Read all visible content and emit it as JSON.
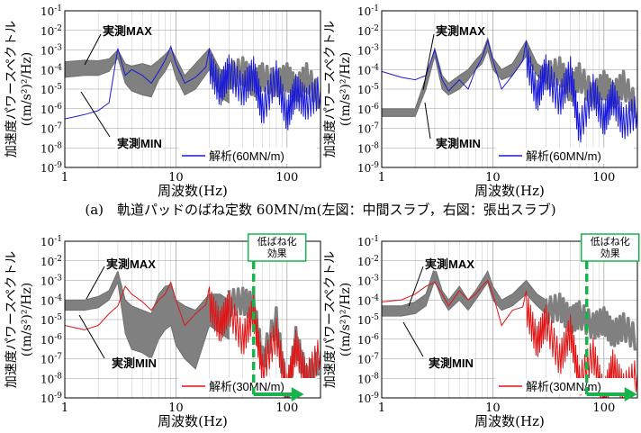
{
  "caption": "(a)　軌道パッドのばね定数 60MN/m(左図：中間スラブ，右図：張出スラブ)",
  "chart_data": [
    {
      "type": "line",
      "scale": "log-log",
      "xlim": [
        1,
        200
      ],
      "ylim": [
        1e-09,
        0.1
      ],
      "x_ticks": [
        "1",
        "10",
        "100"
      ],
      "y_ticks": [
        "10-9",
        "10-8",
        "10-7",
        "10-6",
        "10-5",
        "10-4",
        "10-3",
        "10-2",
        "10-1"
      ],
      "xlabel": "周波数(Hz)",
      "ylabel_line1": "加速度パワースペクトル",
      "ylabel_line2": "((m/s²)²/Hz)",
      "legend": "解析(60MN/m)",
      "label_max": "実測MAX",
      "label_min": "実測MIN",
      "analysis_color": "#1a1ad6",
      "band_color": "#808080",
      "measured_band_x": [
        1,
        1.5,
        2,
        2.5,
        3,
        3.5,
        4,
        5,
        6,
        7,
        8,
        9,
        10,
        12,
        15,
        20,
        25,
        30
      ],
      "measured_max": [
        0.00025,
        0.0003,
        0.00028,
        0.00035,
        0.001,
        0.0002,
        0.00015,
        0.0002,
        0.00015,
        0.0003,
        0.0006,
        0.0012,
        0.0004,
        5e-05,
        0.0002,
        0.0012,
        0.0001,
        8e-05
      ],
      "measured_min": [
        4e-05,
        5e-05,
        5e-05,
        8e-05,
        0.0004,
        2e-05,
        8e-06,
        5e-06,
        4e-06,
        3e-05,
        8e-05,
        0.0003,
        4e-05,
        5e-06,
        1e-05,
        0.0001,
        4e-06,
        2e-06
      ],
      "measured_tail_x": [
        30,
        40,
        50,
        60,
        80,
        100,
        120,
        150,
        200
      ],
      "measured_tail": [
        5e-05,
        0.0001,
        2e-05,
        5e-05,
        2e-05,
        5e-05,
        1e-05,
        5e-05,
        3e-06
      ],
      "analysis_x": [
        1,
        1.5,
        2,
        2.5,
        3,
        3.5,
        4,
        5,
        6,
        7,
        8,
        9,
        10,
        12,
        15,
        20,
        25,
        30,
        40,
        50,
        60,
        80,
        100,
        120,
        150,
        200
      ],
      "analysis_y": [
        3e-07,
        5e-07,
        8e-07,
        2e-06,
        0.0012,
        5e-05,
        0.0001,
        5e-05,
        2e-05,
        8e-05,
        0.0003,
        0.0015,
        0.0002,
        2e-05,
        4e-05,
        0.0002,
        1e-05,
        0.0001,
        1e-05,
        8e-05,
        1e-06,
        5e-05,
        5e-07,
        1e-05,
        2e-06,
        1e-05
      ]
    },
    {
      "type": "line",
      "scale": "log-log",
      "xlim": [
        1,
        200
      ],
      "ylim": [
        1e-09,
        0.1
      ],
      "x_ticks": [
        "1",
        "10",
        "100"
      ],
      "y_ticks": [
        "10-9",
        "10-8",
        "10-7",
        "10-6",
        "10-5",
        "10-4",
        "10-3",
        "10-2",
        "10-1"
      ],
      "xlabel": "周波数(Hz)",
      "ylabel_line1": "加速度パワースペクトル",
      "ylabel_line2": "((m/s²)²/Hz)",
      "legend": "解析(60MN/m)",
      "label_max": "実測MAX",
      "label_min": "実測MIN",
      "analysis_color": "#1a1ad6",
      "band_color": "#808080",
      "measured_band_x": [
        1,
        1.5,
        2,
        2.5,
        3,
        3.5,
        4,
        5,
        6,
        7,
        8,
        9,
        10,
        12,
        15,
        20,
        25,
        30
      ],
      "measured_max": [
        1e-06,
        1e-06,
        1e-06,
        4e-05,
        0.0012,
        5e-05,
        2e-05,
        5e-05,
        0.0001,
        0.0003,
        0.0007,
        0.004,
        0.0004,
        0.0001,
        0.0002,
        0.003,
        0.0002,
        0.0001
      ],
      "measured_min": [
        4e-07,
        4e-07,
        4e-07,
        1e-05,
        0.0005,
        1e-05,
        5e-06,
        1e-05,
        3e-05,
        0.0001,
        0.0002,
        0.001,
        0.0001,
        3e-05,
        5e-05,
        0.0005,
        5e-05,
        2e-05
      ],
      "measured_tail_x": [
        30,
        40,
        50,
        60,
        80,
        100,
        120,
        150,
        200
      ],
      "measured_tail": [
        5e-05,
        0.0001,
        1e-05,
        5e-05,
        5e-06,
        2e-05,
        5e-06,
        2e-05,
        1e-06
      ],
      "analysis_x": [
        1,
        1.5,
        2,
        2.5,
        3,
        3.5,
        4,
        5,
        6,
        7,
        8,
        9,
        10,
        12,
        15,
        20,
        25,
        30,
        40,
        50,
        60,
        80,
        100,
        120,
        150,
        200
      ],
      "analysis_y": [
        8e-05,
        4e-05,
        3e-05,
        5e-05,
        0.001,
        3e-05,
        8e-06,
        3e-05,
        1e-05,
        0.0001,
        0.0004,
        0.003,
        0.0003,
        1e-05,
        5e-05,
        0.0005,
        5e-06,
        0.0001,
        3e-06,
        8e-05,
        1e-07,
        1e-05,
        3e-07,
        5e-06,
        2e-07,
        1e-06
      ]
    },
    {
      "type": "line",
      "scale": "log-log",
      "xlim": [
        1,
        200
      ],
      "ylim": [
        1e-09,
        0.1
      ],
      "x_ticks": [
        "1",
        "10",
        "100"
      ],
      "y_ticks": [
        "10-9",
        "10-8",
        "10-7",
        "10-6",
        "10-5",
        "10-4",
        "10-3",
        "10-2",
        "10-1"
      ],
      "xlabel": "周波数(Hz)",
      "ylabel_line1": "加速度パワースペクトル",
      "ylabel_line2": "((m/s²)²/Hz)",
      "legend": "解析(30MN/m)",
      "label_max": "実測MAX",
      "label_min": "実測MIN",
      "annotation": "低ばね化効果",
      "annotation_line1": "低ばね化",
      "annotation_line2": "効果",
      "threshold_x": 50,
      "analysis_color": "#e01414",
      "band_color": "#808080",
      "threshold_color": "#19b34d",
      "measured_band_x": [
        1,
        1.5,
        2,
        2.5,
        3,
        3.5,
        4,
        5,
        6,
        7,
        8,
        9,
        10,
        12,
        15,
        20,
        25,
        30
      ],
      "measured_max": [
        0.0001,
        0.0001,
        0.00015,
        0.0003,
        0.003,
        0.0001,
        5e-05,
        3e-05,
        2e-05,
        0.0002,
        0.0005,
        0.0006,
        0.0001,
        5e-05,
        3e-05,
        0.0002,
        0.0002,
        0.0001
      ],
      "measured_min": [
        3e-05,
        3e-05,
        4e-05,
        0.0001,
        0.0008,
        2e-06,
        3e-07,
        2e-07,
        1e-07,
        1e-06,
        3e-06,
        5e-06,
        5e-07,
        1e-07,
        3e-08,
        5e-06,
        2e-06,
        1e-06
      ],
      "measured_tail_x": [
        30,
        40,
        50,
        60,
        80,
        100,
        120,
        150,
        200
      ],
      "measured_tail": [
        8e-05,
        0.0001,
        5e-05,
        1e-07,
        1e-05,
        1e-09,
        1e-06,
        1e-08,
        1e-07
      ],
      "analysis_x": [
        1,
        1.5,
        2,
        2.5,
        3,
        3.5,
        4,
        5,
        6,
        7,
        8,
        9,
        10,
        12,
        15,
        20,
        25,
        30,
        40,
        50,
        60,
        80,
        100,
        120,
        150,
        200
      ],
      "analysis_y": [
        5e-06,
        3e-06,
        5e-06,
        2e-05,
        5e-05,
        0.0005,
        0.0002,
        8e-05,
        3e-05,
        0.0001,
        0.0002,
        0.0008,
        0.0001,
        5e-06,
        2e-05,
        8e-05,
        5e-06,
        5e-05,
        1e-06,
        3e-05,
        3e-08,
        2e-06,
        3e-09,
        5e-07,
        1e-08,
        3e-07
      ]
    },
    {
      "type": "line",
      "scale": "log-log",
      "xlim": [
        1,
        200
      ],
      "ylim": [
        1e-09,
        0.1
      ],
      "x_ticks": [
        "1",
        "10",
        "100"
      ],
      "y_ticks": [
        "10-9",
        "10-8",
        "10-7",
        "10-6",
        "10-5",
        "10-4",
        "10-3",
        "10-2",
        "10-1"
      ],
      "xlabel": "周波数(Hz)",
      "ylabel_line1": "加速度パワースペクトル",
      "ylabel_line2": "((m/s²)²/Hz)",
      "legend": "解析(30MN/m)",
      "label_max": "実測MAX",
      "label_min": "実測MIN",
      "annotation": "低ばね化効果",
      "annotation_line1": "低ばね化",
      "annotation_line2": "効果",
      "threshold_x": 70,
      "analysis_color": "#e01414",
      "band_color": "#808080",
      "threshold_color": "#19b34d",
      "measured_band_x": [
        1,
        1.5,
        2,
        2.5,
        3,
        3.5,
        4,
        5,
        6,
        7,
        8,
        9,
        10,
        12,
        15,
        20,
        25,
        30
      ],
      "measured_max": [
        5e-05,
        5e-05,
        8e-05,
        0.0002,
        0.005,
        0.0003,
        0.0001,
        0.0005,
        0.0001,
        0.0003,
        0.001,
        0.003,
        0.0005,
        0.0001,
        0.0002,
        0.001,
        0.0002,
        0.0001
      ],
      "measured_min": [
        1.5e-05,
        1.5e-05,
        2e-05,
        5e-05,
        0.001,
        0.0001,
        3e-05,
        0.0001,
        3e-05,
        0.0001,
        0.0003,
        0.0008,
        0.0001,
        3e-05,
        5e-05,
        0.0002,
        5e-05,
        2e-05
      ],
      "measured_tail_x": [
        30,
        40,
        50,
        60,
        80,
        100,
        120,
        150,
        200
      ],
      "measured_tail": [
        3e-05,
        5e-05,
        1e-05,
        2e-05,
        5e-06,
        1e-05,
        2e-06,
        5e-06,
        1e-06
      ],
      "analysis_x": [
        1,
        1.5,
        2,
        2.5,
        3,
        3.5,
        4,
        5,
        6,
        7,
        8,
        9,
        10,
        12,
        15,
        20,
        25,
        30,
        40,
        50,
        60,
        80,
        100,
        120,
        150,
        200
      ],
      "analysis_y": [
        8e-05,
        0.0001,
        0.0002,
        0.0005,
        0.0008,
        0.0002,
        5e-05,
        0.0003,
        0.0001,
        0.0002,
        0.0005,
        0.001,
        0.0002,
        5e-06,
        3e-05,
        5e-05,
        8e-07,
        1e-05,
        1e-07,
        3e-06,
        8e-09,
        2e-07,
        1e-09,
        5e-08,
        3e-09,
        2e-08
      ]
    }
  ]
}
